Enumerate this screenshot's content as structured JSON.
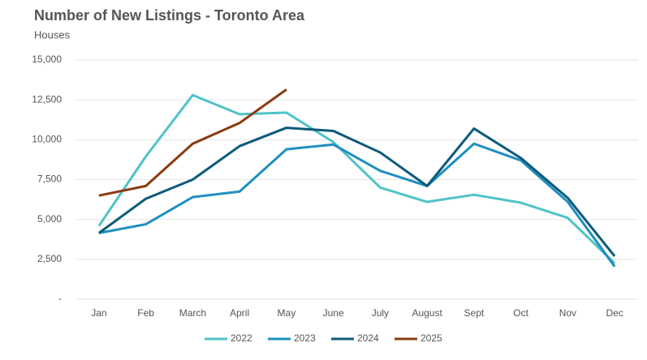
{
  "chart_data": {
    "type": "line",
    "title": "Number of New Listings - Toronto Area",
    "subtitle": "Houses",
    "categories": [
      "Jan",
      "Feb",
      "March",
      "April",
      "May",
      "June",
      "July",
      "August",
      "Sept",
      "Oct",
      "Nov",
      "Dec"
    ],
    "series": [
      {
        "name": "2022",
        "color": "#4fc3c8",
        "values": [
          4600,
          8950,
          12800,
          11600,
          11700,
          9850,
          7000,
          6100,
          6550,
          6050,
          5100,
          2250
        ]
      },
      {
        "name": "2023",
        "color": "#1f8fc0",
        "values": [
          4150,
          4700,
          6400,
          6750,
          9400,
          9700,
          8050,
          7100,
          9750,
          8700,
          6100,
          2050
        ]
      },
      {
        "name": "2024",
        "color": "#0d5a7a",
        "values": [
          4150,
          6300,
          7500,
          9600,
          10750,
          10550,
          9200,
          7100,
          10700,
          8850,
          6350,
          2700
        ]
      },
      {
        "name": "2025",
        "color": "#8b3a12",
        "values": [
          6500,
          7100,
          9750,
          11050,
          13150,
          null,
          null,
          null,
          null,
          null,
          null,
          null
        ]
      }
    ],
    "ylim": [
      0,
      15000
    ],
    "yticks": [
      {
        "value": 0,
        "label": "-"
      },
      {
        "value": 2500,
        "label": "2,500"
      },
      {
        "value": 5000,
        "label": "5,000"
      },
      {
        "value": 7500,
        "label": "7,500"
      },
      {
        "value": 10000,
        "label": "10,000"
      },
      {
        "value": 12500,
        "label": "12,500"
      },
      {
        "value": 15000,
        "label": "15,000"
      }
    ],
    "grid": true,
    "legend": "bottom"
  }
}
